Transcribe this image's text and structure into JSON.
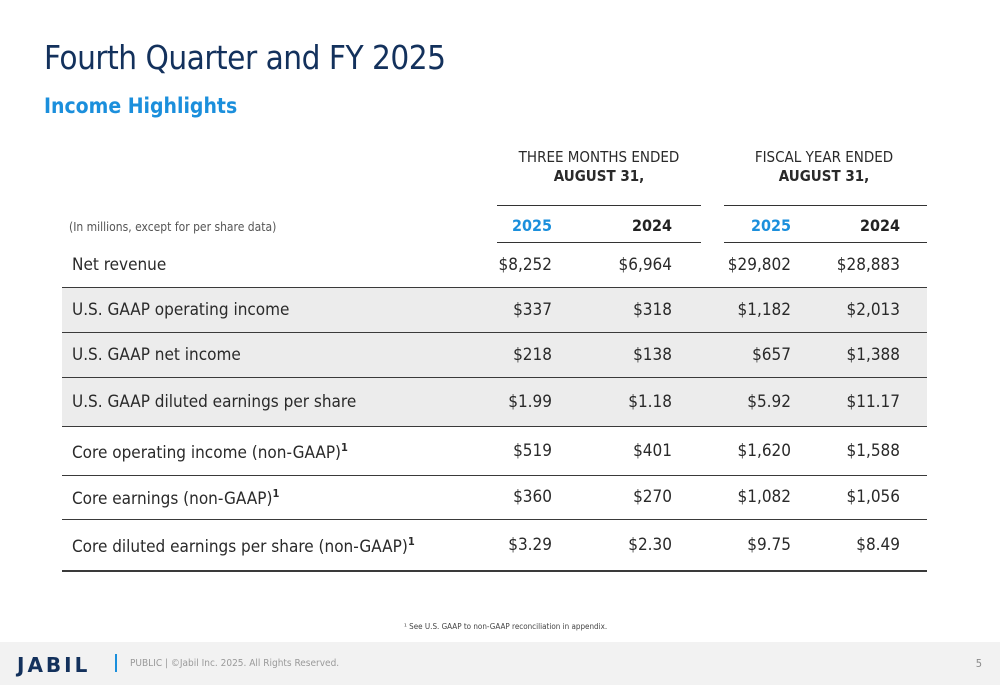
{
  "title": "Fourth Quarter and FY 2025",
  "subtitle": "Income Highlights",
  "table": {
    "groups": [
      {
        "line1": "THREE MONTHS ENDED",
        "line2": "AUGUST 31,"
      },
      {
        "line1": "FISCAL YEAR  ENDED",
        "line2": "AUGUST 31,"
      }
    ],
    "unit_note": "(In millions, except for per share data)",
    "columns": [
      "2025",
      "2024",
      "2025",
      "2024"
    ],
    "rows": [
      {
        "label": "Net revenue",
        "sup": "",
        "values": [
          "$8,252",
          "$6,964",
          "$29,802",
          "$28,883"
        ]
      },
      {
        "label": "U.S. GAAP operating income",
        "sup": "",
        "values": [
          "$337",
          "$318",
          "$1,182",
          "$2,013"
        ]
      },
      {
        "label": "U.S. GAAP net income",
        "sup": "",
        "values": [
          "$218",
          "$138",
          "$657",
          "$1,388"
        ]
      },
      {
        "label": "U.S. GAAP diluted earnings per share",
        "sup": "",
        "values": [
          "$1.99",
          "$1.18",
          "$5.92",
          "$11.17"
        ]
      },
      {
        "label": "Core operating income (non-GAAP)",
        "sup": "1",
        "values": [
          "$519",
          "$401",
          "$1,620",
          "$1,588"
        ]
      },
      {
        "label": "Core earnings (non-GAAP)",
        "sup": "1",
        "values": [
          "$360",
          "$270",
          "$1,082",
          "$1,056"
        ]
      },
      {
        "label": "Core diluted earnings per share (non-GAAP)",
        "sup": "1",
        "values": [
          "$3.29",
          "$2.30",
          "$9.75",
          "$8.49"
        ]
      }
    ]
  },
  "footnote": "¹ See U.S. GAAP to non-GAAP reconciliation in appendix.",
  "footer": {
    "logo": "JABIL",
    "legal": "PUBLIC  |  ©Jabil Inc. 2025. All Rights Reserved.",
    "page_number": "5"
  },
  "colors": {
    "title": "#13315c",
    "accent": "#1b8fdc",
    "shaded_row": "#ececec"
  }
}
